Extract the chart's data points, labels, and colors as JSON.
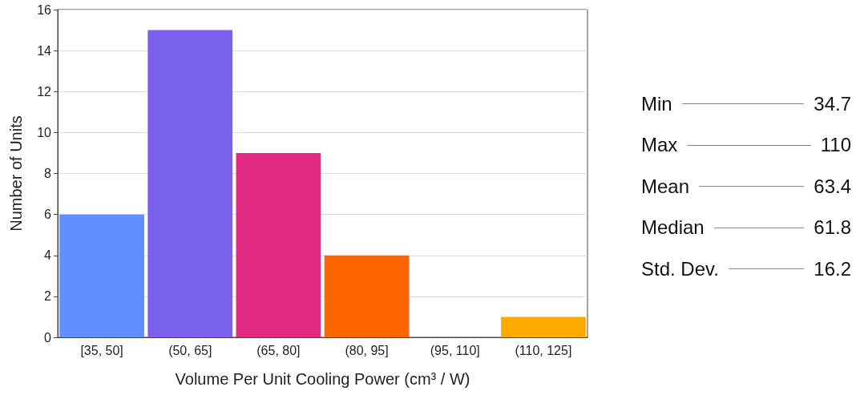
{
  "chart_data": {
    "type": "bar",
    "xlabel": "Volume Per Unit Cooling Power (cm³ / W)",
    "ylabel": "Number of Units",
    "categories": [
      "[35, 50]",
      "(50, 65]",
      "(65, 80]",
      "(80, 95]",
      "(95, 110]",
      "(110, 125]"
    ],
    "values": [
      6,
      15,
      9,
      4,
      0,
      1
    ],
    "colors": [
      "#6090ff",
      "#7b61ee",
      "#e0297f",
      "#ff6600",
      "#c8c8c8",
      "#ffaa00"
    ],
    "ylim": [
      0,
      16
    ],
    "yticks": [
      0,
      2,
      4,
      6,
      8,
      10,
      12,
      14,
      16
    ],
    "grid": "y",
    "annotations": [
      "Min",
      "34.7",
      "Max",
      "110",
      "Mean",
      "63.4",
      "Median",
      "61.8",
      "Std. Dev.",
      "16.2"
    ]
  }
}
